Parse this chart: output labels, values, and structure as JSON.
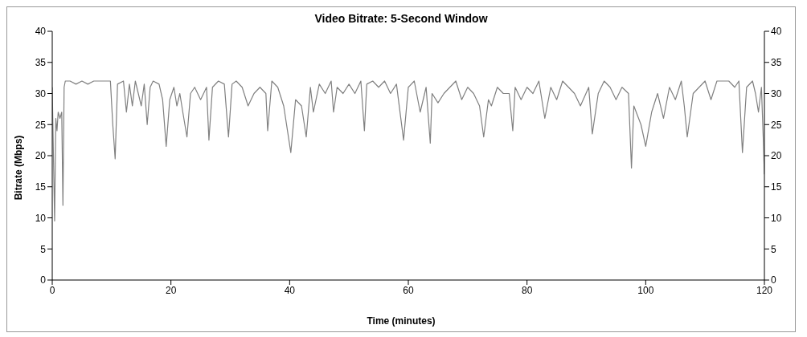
{
  "chart_data": {
    "type": "line",
    "title": "Video Bitrate: 5-Second Window",
    "xlabel": "Time (minutes)",
    "ylabel": "Bitrate (Mbps)",
    "x": [
      0,
      0.2,
      0.4,
      0.6,
      0.8,
      1.0,
      1.3,
      1.6,
      1.8,
      2.0,
      2.2,
      3,
      4,
      5,
      6,
      7,
      8,
      9,
      9.8,
      10.2,
      10.6,
      11,
      12,
      12.5,
      13,
      13.5,
      14,
      15,
      15.5,
      16,
      16.5,
      17,
      18,
      18.6,
      19.2,
      19.8,
      20.5,
      21,
      21.5,
      22,
      22.7,
      23.3,
      24,
      25,
      26,
      26.4,
      27,
      28,
      29,
      29.7,
      30.3,
      31,
      32,
      33,
      34,
      35,
      36,
      36.3,
      37,
      38,
      39,
      40.2,
      41,
      42,
      42.8,
      43.5,
      44,
      45,
      46,
      47,
      47.4,
      48,
      49,
      50,
      51,
      52,
      52.6,
      53,
      54,
      55,
      56,
      57,
      58,
      59.2,
      60,
      61,
      62,
      63,
      63.7,
      64,
      65,
      66,
      67,
      68,
      69,
      70,
      71,
      72,
      72.7,
      73.5,
      74,
      75,
      76,
      77,
      77.6,
      78,
      79,
      80,
      81,
      82,
      83,
      84,
      85,
      86,
      87,
      88,
      89,
      90.4,
      91,
      92,
      93,
      94,
      95,
      96,
      97.1,
      97.6,
      98,
      99.2,
      100,
      101,
      102,
      103,
      104,
      105,
      106,
      106.5,
      107,
      108,
      109,
      110,
      111,
      112,
      113,
      114,
      115,
      115.7,
      116.3,
      117,
      118,
      118.5,
      119,
      119.5,
      119.8,
      120
    ],
    "series": [
      {
        "color": "#808080",
        "values": [
          31,
          20,
          9.5,
          26,
          24,
          27,
          26,
          27,
          12,
          31,
          32,
          32,
          31.5,
          32,
          31.5,
          32,
          32,
          32,
          32,
          25,
          19.5,
          31.5,
          32,
          27,
          31.5,
          28,
          32,
          28,
          31.5,
          25,
          31,
          32,
          31.5,
          29,
          21.5,
          29,
          31,
          28,
          30,
          27,
          23,
          30,
          31,
          29,
          31,
          22.5,
          31,
          32,
          31.5,
          23,
          31.5,
          32,
          31,
          28,
          30,
          31,
          30,
          24,
          32,
          31,
          28,
          20.5,
          29,
          28,
          23,
          31,
          27,
          31.5,
          30,
          32,
          27,
          31,
          30,
          31.5,
          30,
          32,
          24,
          31.5,
          32,
          31,
          32,
          30,
          31.5,
          22.5,
          31,
          32,
          27,
          31,
          22,
          30,
          28.5,
          30,
          31,
          32,
          29,
          31,
          30,
          28,
          23,
          29,
          28,
          31,
          30,
          30,
          24,
          31,
          29,
          31,
          30,
          32,
          26,
          31,
          29,
          32,
          31,
          30,
          28,
          31,
          23.5,
          30,
          32,
          31,
          29,
          31,
          30,
          18,
          28,
          25,
          21.5,
          27,
          30,
          26,
          31,
          29,
          32,
          28,
          23,
          30,
          31,
          32,
          29,
          32,
          32,
          32,
          31,
          32,
          20.5,
          31,
          32,
          30,
          27,
          31,
          23,
          17
        ]
      }
    ],
    "xlim": [
      0,
      120
    ],
    "xticks": [
      0,
      20,
      40,
      60,
      80,
      100,
      120
    ],
    "ylim": [
      0,
      40
    ],
    "yticks": [
      0,
      5,
      10,
      15,
      20,
      25,
      30,
      35,
      40
    ],
    "y2lim": [
      0,
      40
    ],
    "y2ticks": [
      0,
      5,
      10,
      15,
      20,
      25,
      30,
      35,
      40
    ],
    "marker": "none",
    "line_style": "solid"
  }
}
